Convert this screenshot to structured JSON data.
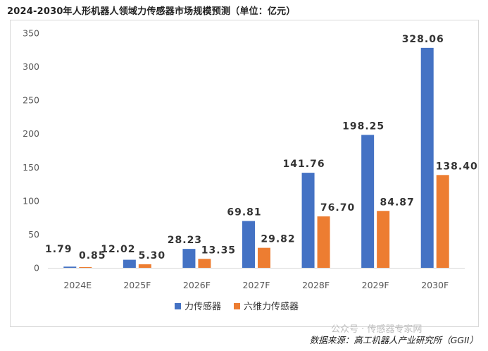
{
  "chart_data": {
    "type": "bar",
    "title": "2024-2030年人形机器人领域力传感器市场规模预测（单位：亿元）",
    "categories": [
      "2024E",
      "2025F",
      "2026F",
      "2027F",
      "2028F",
      "2029F",
      "2030F"
    ],
    "series": [
      {
        "name": "力传感器",
        "color": "#4472C4",
        "values": [
          1.79,
          12.02,
          28.23,
          69.81,
          141.76,
          198.25,
          328.06
        ]
      },
      {
        "name": "六维力传感器",
        "color": "#ED7D31",
        "values": [
          0.85,
          5.3,
          13.35,
          29.82,
          76.7,
          84.87,
          138.4
        ]
      }
    ],
    "data_labels": [
      [
        "1.79",
        "12.02",
        "28.23",
        "69.81",
        "141.76",
        "198.25",
        "328.06"
      ],
      [
        "0.85",
        "5.30",
        "13.35",
        "29.82",
        "76.70",
        "84.87",
        "138.40"
      ]
    ],
    "ylim": [
      0,
      350
    ],
    "yticks": [
      0,
      50,
      100,
      150,
      200,
      250,
      300,
      350
    ],
    "xlabel": "",
    "ylabel": "",
    "grid": false,
    "legend_position": "bottom-center"
  },
  "source": "数据来源：高工机器人产业研究所（GGII）",
  "watermark": "公众号 · 传感器专家网"
}
